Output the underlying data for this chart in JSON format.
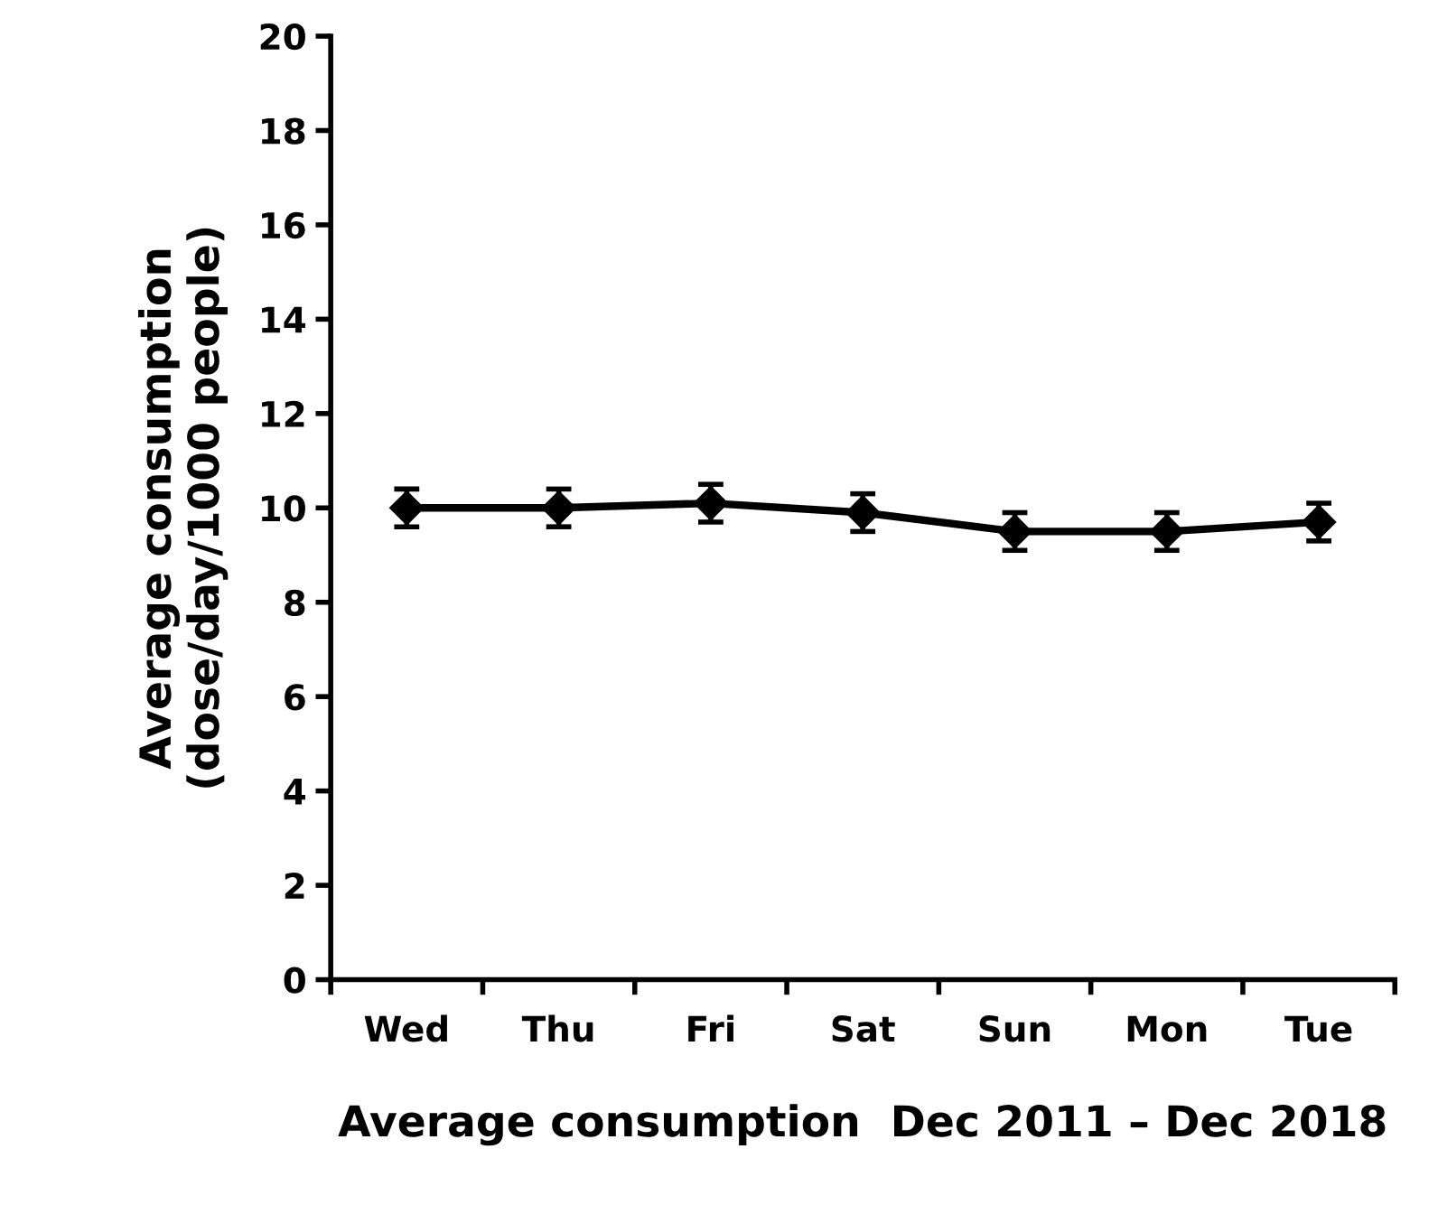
{
  "chart_data": {
    "type": "line",
    "xlabel": "Average consumption  Dec 2011 – Dec 2018",
    "ylabel": "Average consumption\n(dose/day/1000 people)",
    "categories": [
      "Wed",
      "Thu",
      "Fri",
      "Sat",
      "Sun",
      "Mon",
      "Tue"
    ],
    "series": [
      {
        "color": "#000000",
        "values": [
          10.0,
          10.0,
          10.1,
          9.9,
          9.5,
          9.5,
          9.7
        ],
        "errors": [
          0.4,
          0.4,
          0.4,
          0.4,
          0.4,
          0.4,
          0.4
        ]
      }
    ],
    "ylim": [
      0,
      20
    ],
    "yticks": [
      0,
      2,
      4,
      6,
      8,
      10,
      12,
      14,
      16,
      18,
      20
    ],
    "grid": false,
    "legend": false,
    "marker": "diamond",
    "line_style": "solid"
  }
}
